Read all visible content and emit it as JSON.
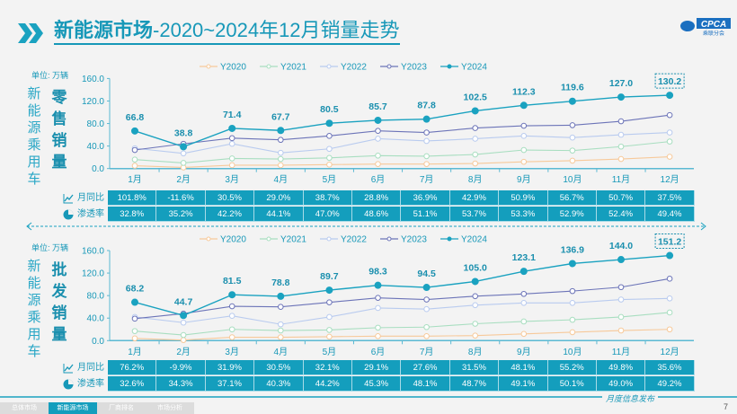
{
  "title": {
    "bold": "新能源市场",
    "rest": "-2020~2024年12月销量走势"
  },
  "logo": {
    "text": "CPCA",
    "sub": "乘联分会"
  },
  "colors": {
    "accent": "#1798b8",
    "Y2020": "#f7c99a",
    "Y2021": "#a8dec0",
    "Y2022": "#b9cbef",
    "Y2023": "#6c74b8",
    "Y2024": "#1aa2c0",
    "table": "#149ebd"
  },
  "side_label": "新能源乘用车",
  "unit": "单位: 万辆",
  "row_labels": {
    "yoy": "月同比",
    "pen": "渗透率"
  },
  "icons": {
    "yoy": "line-chart-icon",
    "pen": "pie-chart-icon",
    "title": "double-chevron-icon"
  },
  "chart_data": [
    {
      "type": "line",
      "name_label": "零售销量",
      "ylim": [
        0,
        160
      ],
      "yticks": [
        "0.0",
        "40.0",
        "80.0",
        "120.0",
        "160.0"
      ],
      "categories": [
        "1月",
        "2月",
        "3月",
        "4月",
        "5月",
        "6月",
        "7月",
        "8月",
        "9月",
        "10月",
        "11月",
        "12月"
      ],
      "legend_placement": "top",
      "series": [
        {
          "name": "Y2020",
          "values": [
            5,
            2,
            6,
            6,
            7,
            8,
            8,
            9,
            12,
            14,
            17,
            21
          ]
        },
        {
          "name": "Y2021",
          "values": [
            16,
            10,
            18,
            17,
            19,
            23,
            22,
            25,
            33,
            32,
            39,
            48
          ]
        },
        {
          "name": "Y2022",
          "values": [
            36,
            27,
            44,
            28,
            35,
            53,
            49,
            53,
            58,
            55,
            60,
            64
          ]
        },
        {
          "name": "Y2023",
          "values": [
            33,
            44,
            54,
            51,
            58,
            67,
            64,
            72,
            76,
            77,
            84,
            95
          ]
        },
        {
          "name": "Y2024",
          "values": [
            66.8,
            38.8,
            71.4,
            67.7,
            80.5,
            85.7,
            87.8,
            102.5,
            112.3,
            119.6,
            127.0,
            130.2
          ],
          "labels": [
            "66.8",
            "38.8",
            "71.4",
            "67.7",
            "80.5",
            "85.7",
            "87.8",
            "102.5",
            "112.3",
            "119.6",
            "127.0",
            "130.2"
          ]
        }
      ],
      "yoy": [
        "101.8%",
        "-11.6%",
        "30.5%",
        "29.0%",
        "38.7%",
        "28.8%",
        "36.9%",
        "42.9%",
        "50.9%",
        "56.7%",
        "50.7%",
        "37.5%"
      ],
      "penetration": [
        "32.8%",
        "35.2%",
        "42.2%",
        "44.1%",
        "47.0%",
        "48.6%",
        "51.1%",
        "53.7%",
        "53.3%",
        "52.9%",
        "52.4%",
        "49.4%"
      ]
    },
    {
      "type": "line",
      "name_label": "批发销量",
      "ylim": [
        0,
        160
      ],
      "yticks": [
        "0.0",
        "40.0",
        "80.0",
        "120.0",
        "160.0"
      ],
      "categories": [
        "1月",
        "2月",
        "3月",
        "4月",
        "5月",
        "6月",
        "7月",
        "8月",
        "9月",
        "10月",
        "11月",
        "12月"
      ],
      "legend_placement": "top",
      "series": [
        {
          "name": "Y2020",
          "values": [
            4,
            1,
            6,
            6,
            7,
            8,
            8,
            9,
            12,
            15,
            18,
            20
          ]
        },
        {
          "name": "Y2021",
          "values": [
            17,
            10,
            20,
            18,
            19,
            23,
            24,
            30,
            34,
            37,
            42,
            50
          ]
        },
        {
          "name": "Y2022",
          "values": [
            42,
            32,
            44,
            29,
            42,
            58,
            56,
            63,
            67,
            67,
            73,
            75
          ]
        },
        {
          "name": "Y2023",
          "values": [
            39,
            48,
            61,
            60,
            68,
            76,
            73,
            79,
            83,
            88,
            95,
            110
          ]
        },
        {
          "name": "Y2024",
          "values": [
            68.2,
            44.7,
            81.5,
            78.8,
            89.7,
            98.3,
            94.5,
            105.0,
            123.1,
            136.9,
            144.0,
            151.2
          ],
          "labels": [
            "68.2",
            "44.7",
            "81.5",
            "78.8",
            "89.7",
            "98.3",
            "94.5",
            "105.0",
            "123.1",
            "136.9",
            "144.0",
            "151.2"
          ]
        }
      ],
      "yoy": [
        "76.2%",
        "-9.9%",
        "31.9%",
        "30.5%",
        "32.1%",
        "29.1%",
        "27.6%",
        "31.5%",
        "48.1%",
        "55.2%",
        "49.8%",
        "35.6%"
      ],
      "penetration": [
        "32.6%",
        "34.3%",
        "37.1%",
        "40.3%",
        "44.2%",
        "45.3%",
        "48.1%",
        "48.7%",
        "49.1%",
        "50.1%",
        "49.0%",
        "49.2%"
      ]
    }
  ],
  "nav": [
    "总体市场",
    "新能源市场",
    "厂商排名",
    "市场分析"
  ],
  "footer": {
    "publish": "月度信息发布",
    "page": "7"
  }
}
